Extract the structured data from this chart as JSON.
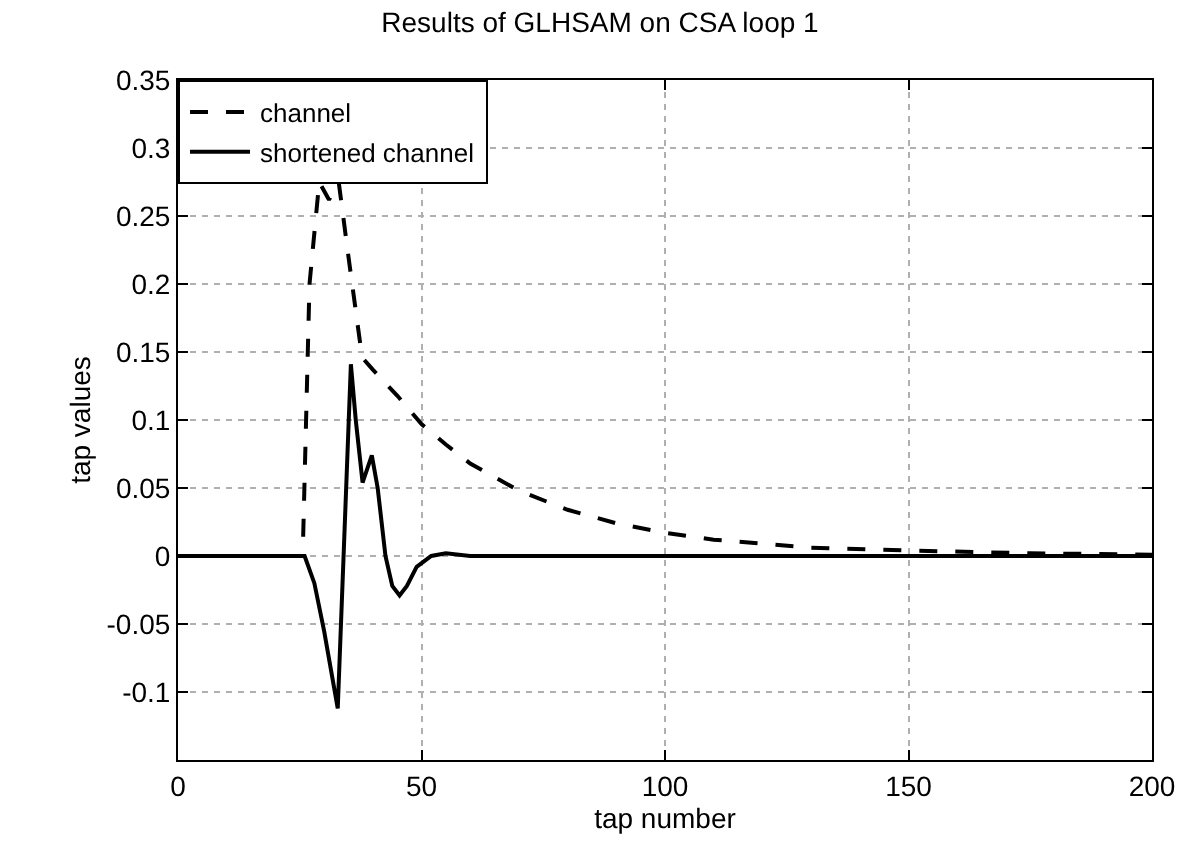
{
  "chart_data": {
    "type": "line",
    "title": "Results of GLHSAM on CSA loop 1",
    "xlabel": "tap number",
    "ylabel": "tap values",
    "xlim": [
      0,
      200
    ],
    "xticks": [
      0,
      50,
      100,
      150,
      200
    ],
    "ylim": [
      -0.15,
      0.35
    ],
    "yticks": [
      -0.1,
      -0.05,
      0,
      0.05,
      0.1,
      0.15,
      0.2,
      0.25,
      0.3,
      0.35
    ],
    "grid": true,
    "legend": "top left",
    "marker": "none",
    "series": [
      {
        "name": "channel",
        "color": "#000000",
        "line_style": "dashed",
        "x": [
          0,
          10,
          20,
          25.6,
          27,
          29,
          31,
          33,
          35,
          37.8,
          40,
          45,
          50,
          55,
          60,
          70,
          80,
          90,
          100,
          110,
          120,
          130,
          150,
          175,
          200
        ],
        "values": [
          0,
          0,
          0,
          0,
          0.2,
          0.275,
          0.262,
          0.275,
          0.22,
          0.146,
          0.137,
          0.118,
          0.097,
          0.082,
          0.068,
          0.048,
          0.034,
          0.024,
          0.017,
          0.012,
          0.009,
          0.006,
          0.004,
          0.002,
          0.001
        ]
      },
      {
        "name": "shortened channel",
        "color": "#000000",
        "line_style": "solid",
        "x": [
          0,
          10,
          20,
          25,
          26,
          28,
          30,
          32.8,
          34,
          35.5,
          36.5,
          37.9,
          39.8,
          41,
          42.6,
          44,
          45.5,
          47,
          49,
          52,
          55,
          60,
          100,
          150,
          200
        ],
        "values": [
          0,
          0,
          0,
          0,
          0,
          -0.02,
          -0.055,
          -0.112,
          0.0,
          0.141,
          0.1,
          0.054,
          0.074,
          0.05,
          0,
          -0.022,
          -0.029,
          -0.022,
          -0.008,
          0,
          0.002,
          0,
          0,
          0,
          0
        ]
      }
    ]
  }
}
